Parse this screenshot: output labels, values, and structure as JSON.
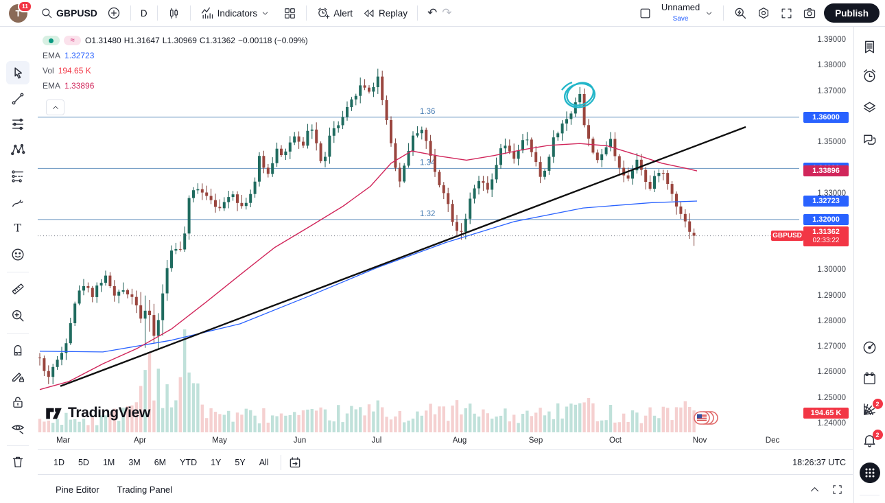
{
  "header": {
    "avatar_initial": "T",
    "notification_count": "11",
    "symbol": "GBPUSD",
    "interval": "D",
    "indicators": "Indicators",
    "alert": "Alert",
    "replay": "Replay",
    "layout_name": "Unnamed",
    "save": "Save",
    "publish": "Publish",
    "icons": [
      "avatar",
      "symbol-search",
      "add-symbol",
      "interval",
      "candle-style",
      "indicators",
      "layout-grid",
      "alert-clock",
      "replay-rewind",
      "undo",
      "redo",
      "layout-square",
      "chevron-down",
      "quick-search",
      "settings-gear",
      "fullscreen",
      "camera-snapshot"
    ]
  },
  "legend": {
    "marker_dot": "status-dot",
    "marker_approx": "≈",
    "o_label": "O",
    "o": "1.31480",
    "h_label": "H",
    "h": "1.31647",
    "l_label": "L",
    "l": "1.30969",
    "c_label": "C",
    "c": "1.31362",
    "change": "−0.00118 (−0.09%)",
    "rows": [
      {
        "label": "EMA",
        "value": "1.32723",
        "color": "#2962FF"
      },
      {
        "label": "Vol",
        "value": "194.65 K",
        "color": "#F23645"
      },
      {
        "label": "EMA",
        "value": "1.33896",
        "color": "#D1265B"
      }
    ]
  },
  "left_toolbar_icons": [
    "cursor",
    "trend-line",
    "horizontal-lines",
    "xabcd-pattern",
    "forecast",
    "brush",
    "text",
    "emoji",
    "measure-ruler",
    "zoom-in",
    "magnet",
    "drawing-pencil-lock",
    "lock",
    "hide-eye",
    "trash"
  ],
  "sidebar_icons": [
    "watchlist",
    "alerts-clock",
    "layers",
    "chat",
    "gauge",
    "calendar",
    "web-screener",
    "notifications-bell",
    "apps-grid",
    "help-sparkle"
  ],
  "sidebar_badges": {
    "web_screener": "2",
    "notifications": "2"
  },
  "watermark": "TradingView",
  "footer": {
    "ranges": [
      "1D",
      "5D",
      "1M",
      "3M",
      "6M",
      "YTD",
      "1Y",
      "5Y",
      "All"
    ],
    "goto_date_icon": "calendar-go",
    "clock": "18:26:37 UTC",
    "tabs": [
      "Pine Editor",
      "Trading Panel"
    ],
    "panel_icons": [
      "chevron-up",
      "maximize"
    ]
  },
  "chart_data": {
    "type": "candlestick",
    "symbol": "GBPUSD",
    "interval": "1D",
    "ylim": [
      1.2375,
      1.3935
    ],
    "months": [
      {
        "label": "Mar",
        "x": 92
      },
      {
        "label": "Apr",
        "x": 204
      },
      {
        "label": "May",
        "x": 320
      },
      {
        "label": "Jun",
        "x": 437
      },
      {
        "label": "Jul",
        "x": 549
      },
      {
        "label": "Aug",
        "x": 670
      },
      {
        "label": "Sep",
        "x": 781
      },
      {
        "label": "Oct",
        "x": 897
      },
      {
        "label": "Nov",
        "x": 1020
      },
      {
        "label": "Dec",
        "x": 1126
      }
    ],
    "price_ticks": [
      1.39,
      1.38,
      1.37,
      1.35,
      1.33,
      1.3,
      1.29,
      1.28,
      1.27,
      1.26,
      1.25,
      1.24
    ],
    "axis_badges": [
      {
        "text": "1.36000",
        "price": 1.36,
        "bg": "#2962FF"
      },
      {
        "text": "1.34000",
        "price": 1.34,
        "bg": "#2962FF"
      },
      {
        "text": "1.33896",
        "price": 1.33896,
        "bg": "#D1265B"
      },
      {
        "text": "1.32723",
        "price": 1.32723,
        "bg": "#2962FF"
      },
      {
        "text": "1.32000",
        "price": 1.32,
        "bg": "#2962FF"
      }
    ],
    "last_price": {
      "tag": "GBPUSD",
      "value": "1.31362",
      "countdown": "02:33:22",
      "price": 1.31362,
      "bg": "#F23645"
    },
    "volume_axis_badge": {
      "value": "194.65 K",
      "bg": "#F23645"
    },
    "levels": [
      {
        "label": "1.36",
        "price": 1.36
      },
      {
        "label": "1.34",
        "price": 1.34
      },
      {
        "label": "1.32",
        "price": 1.32
      }
    ],
    "close_path": [
      [
        52,
        1.266
      ],
      [
        58,
        1.2655
      ],
      [
        64,
        1.2605
      ],
      [
        70,
        1.2585
      ],
      [
        76,
        1.262
      ],
      [
        82,
        1.264
      ],
      [
        88,
        1.2665
      ],
      [
        94,
        1.2705
      ],
      [
        100,
        1.276
      ],
      [
        106,
        1.2855
      ],
      [
        112,
        1.2895
      ],
      [
        118,
        1.293
      ],
      [
        124,
        1.2955
      ],
      [
        130,
        1.2915
      ],
      [
        136,
        1.2905
      ],
      [
        142,
        1.2945
      ],
      [
        148,
        1.296
      ],
      [
        155,
        1.2975
      ],
      [
        162,
        1.2935
      ],
      [
        168,
        1.289
      ],
      [
        175,
        1.2915
      ],
      [
        182,
        1.293
      ],
      [
        189,
        1.2905
      ],
      [
        196,
        1.289
      ],
      [
        202,
        1.2855
      ],
      [
        208,
        1.28
      ],
      [
        214,
        1.287
      ],
      [
        220,
        1.276
      ],
      [
        226,
        1.2745
      ],
      [
        232,
        1.2815
      ],
      [
        238,
        1.294
      ],
      [
        244,
        1.301
      ],
      [
        250,
        1.308
      ],
      [
        256,
        1.3095
      ],
      [
        262,
        1.307
      ],
      [
        268,
        1.312
      ],
      [
        275,
        1.327
      ],
      [
        282,
        1.331
      ],
      [
        290,
        1.333
      ],
      [
        298,
        1.33
      ],
      [
        306,
        1.329
      ],
      [
        314,
        1.326
      ],
      [
        322,
        1.323
      ],
      [
        330,
        1.329
      ],
      [
        338,
        1.331
      ],
      [
        346,
        1.3275
      ],
      [
        354,
        1.3245
      ],
      [
        362,
        1.329
      ],
      [
        370,
        1.332
      ],
      [
        378,
        1.344
      ],
      [
        386,
        1.339
      ],
      [
        394,
        1.338
      ],
      [
        402,
        1.349
      ],
      [
        410,
        1.346
      ],
      [
        418,
        1.3465
      ],
      [
        426,
        1.353
      ],
      [
        434,
        1.35
      ],
      [
        442,
        1.348
      ],
      [
        450,
        1.356
      ],
      [
        458,
        1.355
      ],
      [
        466,
        1.342
      ],
      [
        472,
        1.343
      ],
      [
        480,
        1.352
      ],
      [
        488,
        1.356
      ],
      [
        496,
        1.357
      ],
      [
        504,
        1.362
      ],
      [
        512,
        1.366
      ],
      [
        520,
        1.37
      ],
      [
        528,
        1.373
      ],
      [
        536,
        1.37
      ],
      [
        544,
        1.372
      ],
      [
        552,
        1.376
      ],
      [
        558,
        1.366
      ],
      [
        566,
        1.356
      ],
      [
        574,
        1.344
      ],
      [
        582,
        1.334
      ],
      [
        590,
        1.342
      ],
      [
        598,
        1.35
      ],
      [
        606,
        1.354
      ],
      [
        614,
        1.356
      ],
      [
        622,
        1.35
      ],
      [
        630,
        1.342
      ],
      [
        638,
        1.335
      ],
      [
        646,
        1.332
      ],
      [
        654,
        1.325
      ],
      [
        662,
        1.318
      ],
      [
        670,
        1.314
      ],
      [
        678,
        1.32
      ],
      [
        686,
        1.328
      ],
      [
        694,
        1.333
      ],
      [
        702,
        1.336
      ],
      [
        710,
        1.33
      ],
      [
        718,
        1.336
      ],
      [
        726,
        1.344
      ],
      [
        734,
        1.35
      ],
      [
        742,
        1.346
      ],
      [
        750,
        1.344
      ],
      [
        758,
        1.349
      ],
      [
        766,
        1.352
      ],
      [
        774,
        1.347
      ],
      [
        782,
        1.341
      ],
      [
        790,
        1.335
      ],
      [
        798,
        1.343
      ],
      [
        806,
        1.351
      ],
      [
        814,
        1.355
      ],
      [
        822,
        1.358
      ],
      [
        830,
        1.36
      ],
      [
        838,
        1.366
      ],
      [
        846,
        1.37
      ],
      [
        852,
        1.356
      ],
      [
        858,
        1.351
      ],
      [
        866,
        1.346
      ],
      [
        874,
        1.342
      ],
      [
        882,
        1.348
      ],
      [
        890,
        1.351
      ],
      [
        898,
        1.344
      ],
      [
        906,
        1.339
      ],
      [
        914,
        1.335
      ],
      [
        922,
        1.34
      ],
      [
        930,
        1.345
      ],
      [
        938,
        1.337
      ],
      [
        946,
        1.331
      ],
      [
        954,
        1.336
      ],
      [
        962,
        1.34
      ],
      [
        970,
        1.336
      ],
      [
        978,
        1.331
      ],
      [
        986,
        1.326
      ],
      [
        994,
        1.322
      ],
      [
        1002,
        1.317
      ],
      [
        1008,
        1.315
      ],
      [
        1016,
        1.3136
      ]
    ],
    "ema_slow": {
      "label": "EMA",
      "value": 1.32723,
      "color": "#2962FF",
      "points": [
        [
          58,
          1.2685
        ],
        [
          150,
          1.2682
        ],
        [
          250,
          1.2728
        ],
        [
          350,
          1.2792
        ],
        [
          450,
          1.29
        ],
        [
          550,
          1.3012
        ],
        [
          650,
          1.311
        ],
        [
          750,
          1.3192
        ],
        [
          850,
          1.3245
        ],
        [
          950,
          1.3266
        ],
        [
          1016,
          1.3272
        ]
      ]
    },
    "ema_fast": {
      "label": "EMA",
      "value": 1.33896,
      "color": "#D1265B",
      "points": [
        [
          58,
          1.2535
        ],
        [
          100,
          1.2566
        ],
        [
          150,
          1.2636
        ],
        [
          200,
          1.2696
        ],
        [
          250,
          1.2772
        ],
        [
          300,
          1.2876
        ],
        [
          350,
          1.2984
        ],
        [
          400,
          1.309
        ],
        [
          450,
          1.317
        ],
        [
          500,
          1.3252
        ],
        [
          540,
          1.333
        ],
        [
          570,
          1.342
        ],
        [
          600,
          1.3468
        ],
        [
          640,
          1.3448
        ],
        [
          680,
          1.3432
        ],
        [
          720,
          1.345
        ],
        [
          760,
          1.3472
        ],
        [
          800,
          1.349
        ],
        [
          845,
          1.3497
        ],
        [
          885,
          1.3488
        ],
        [
          925,
          1.3455
        ],
        [
          965,
          1.342
        ],
        [
          1000,
          1.34
        ],
        [
          1016,
          1.339
        ]
      ]
    },
    "volume_envelope": [
      [
        58,
        16
      ],
      [
        100,
        22
      ],
      [
        150,
        18
      ],
      [
        200,
        45
      ],
      [
        210,
        95
      ],
      [
        218,
        110
      ],
      [
        226,
        85
      ],
      [
        234,
        75
      ],
      [
        244,
        60
      ],
      [
        254,
        50
      ],
      [
        264,
        70
      ],
      [
        272,
        150
      ],
      [
        280,
        70
      ],
      [
        292,
        45
      ],
      [
        310,
        32
      ],
      [
        330,
        26
      ],
      [
        350,
        24
      ],
      [
        380,
        26
      ],
      [
        410,
        24
      ],
      [
        440,
        22
      ],
      [
        470,
        26
      ],
      [
        500,
        28
      ],
      [
        530,
        30
      ],
      [
        552,
        34
      ],
      [
        580,
        26
      ],
      [
        610,
        28
      ],
      [
        640,
        30
      ],
      [
        670,
        36
      ],
      [
        700,
        26
      ],
      [
        730,
        24
      ],
      [
        760,
        24
      ],
      [
        790,
        28
      ],
      [
        820,
        30
      ],
      [
        846,
        42
      ],
      [
        870,
        32
      ],
      [
        900,
        28
      ],
      [
        930,
        26
      ],
      [
        960,
        30
      ],
      [
        990,
        34
      ],
      [
        1016,
        36
      ]
    ],
    "last_candle": {
      "o": 1.3148,
      "h": 1.31647,
      "l": 1.30969,
      "c": 1.31362
    },
    "trendline": {
      "x1": 88,
      "price1": 1.2548,
      "x2": 1087,
      "price2": 1.3562,
      "color": "#0f0f0f"
    },
    "ellipse_drawing": {
      "x": 845,
      "price": 1.3685,
      "color": "#24B6C9"
    },
    "flag_marker": {
      "country": "US",
      "x": 1028
    },
    "colors": {
      "up": "#1F6B5F",
      "down": "#9A453E",
      "up_wick": "#155A50",
      "down_wick": "#7C3A34",
      "vol_up": "#ABD7CE",
      "vol_down": "#F2C0C0",
      "level_line": "#4A7FB5",
      "dotted_line": "#787b86"
    }
  }
}
